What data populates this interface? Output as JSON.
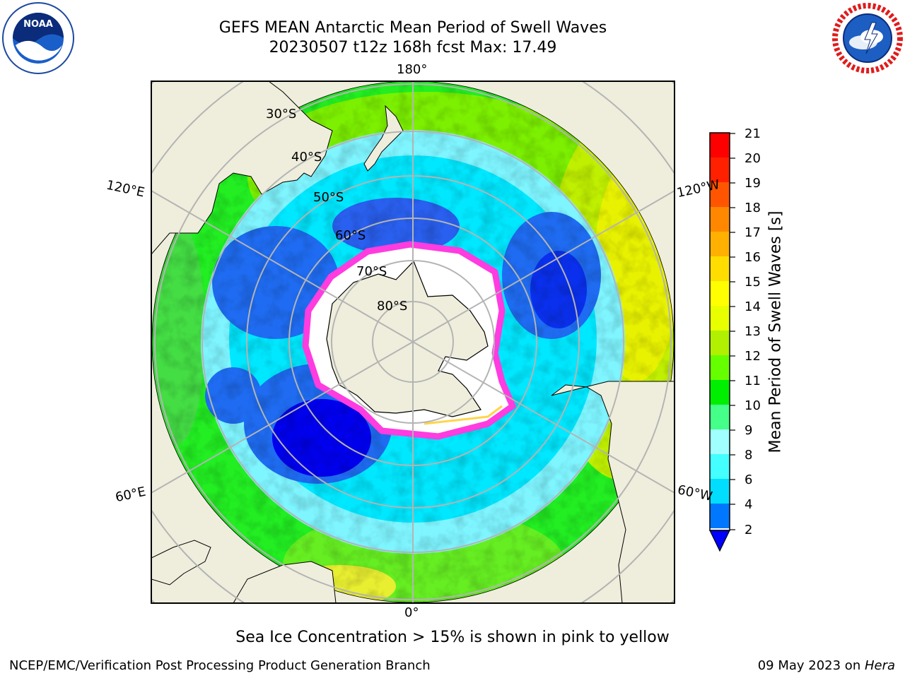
{
  "title": {
    "line1": "GEFS MEAN Antarctic Mean Period of Swell Waves",
    "line2": "20230507 t12z 168h fcst   Max: 17.49"
  },
  "logos": {
    "left": "NOAA",
    "right": "NATIONAL WEATHER SERVICE"
  },
  "map": {
    "projection": "south-polar-stereographic",
    "longitude_labels": [
      "180°",
      "120°E",
      "120°W",
      "60°E",
      "60°W",
      "0°"
    ],
    "latitude_labels": [
      "30°S",
      "40°S",
      "50°S",
      "60°S",
      "70°S",
      "80°S"
    ]
  },
  "colorbar": {
    "label": "Mean Period of Swell Waves [s]",
    "ticks": [
      "21",
      "20",
      "19",
      "18",
      "17",
      "16",
      "15",
      "14",
      "13",
      "12",
      "11",
      "10",
      "9",
      "8",
      "6",
      "4",
      "2"
    ],
    "colors": [
      "#0000ff",
      "#0077ff",
      "#00ddff",
      "#44ffff",
      "#a0ffff",
      "#44ff88",
      "#00ee00",
      "#66ff00",
      "#b0f000",
      "#e8ff00",
      "#ffff00",
      "#ffdd00",
      "#ffb000",
      "#ff8800",
      "#ff5500",
      "#ff2000",
      "#ff0000"
    ]
  },
  "note": "Sea Ice Concentration > 15% is shown in pink to yellow",
  "footer": {
    "left": "NCEP/EMC/Verification Post Processing Product Generation Branch",
    "date": "09 May 2023 on ",
    "machine": "Hera"
  }
}
